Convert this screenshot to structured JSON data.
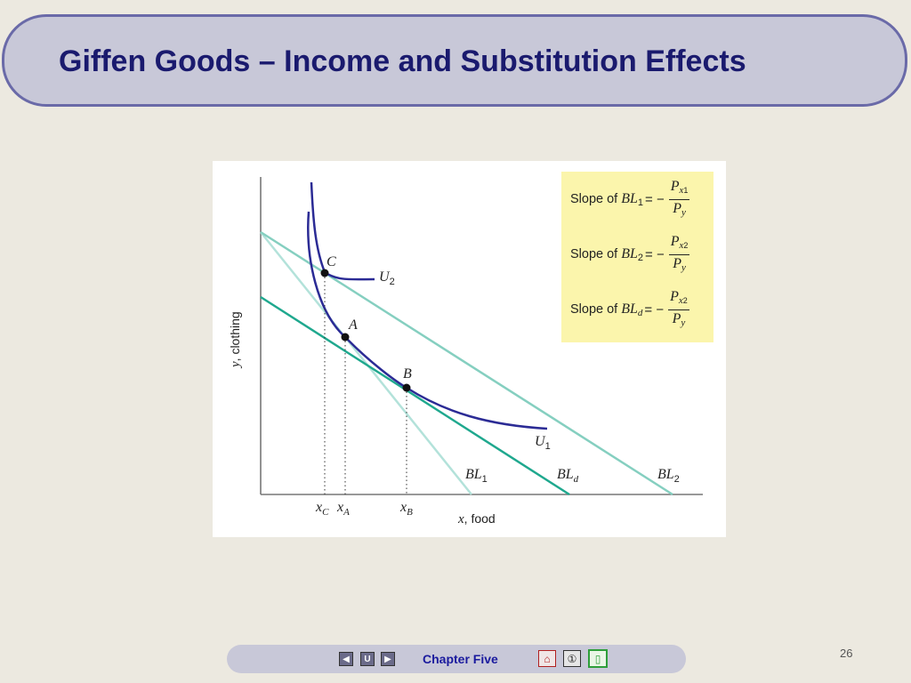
{
  "slide": {
    "title": "Giffen Goods – Income and Substitution Effects",
    "chapter": "Chapter Five",
    "page_number": "26"
  },
  "diagram": {
    "axes": {
      "x_label": "x, food",
      "y_label": "y, clothing"
    },
    "budget_lines": [
      "BL1",
      "BLd",
      "BL2"
    ],
    "curves": [
      "U1",
      "U2"
    ],
    "points": [
      "C",
      "A",
      "B"
    ],
    "x_ticks": [
      "xC",
      "xA",
      "xB"
    ],
    "legend": [
      {
        "label": "Slope of",
        "line": "BL",
        "line_sub": "1",
        "num": "P",
        "num_sub": "x",
        "num_subsub": "1",
        "den": "P",
        "den_sub": "y"
      },
      {
        "label": "Slope of",
        "line": "BL",
        "line_sub": "2",
        "num": "P",
        "num_sub": "x",
        "num_subsub": "2",
        "den": "P",
        "den_sub": "y"
      },
      {
        "label": "Slope of",
        "line": "BL",
        "line_sub": "d",
        "num": "P",
        "num_sub": "x",
        "num_subsub": "2",
        "den": "P",
        "den_sub": "y"
      }
    ],
    "colors": {
      "bl1": "#b0e0d8",
      "bld": "#1fa88e",
      "bl2": "#85cfc0",
      "curve": "#2b2b95",
      "legend_bg": "#fbf5ac"
    }
  },
  "footer_nav": [
    {
      "icon": "prev-arrow-icon"
    },
    {
      "icon": "return-icon"
    },
    {
      "icon": "next-arrow-icon"
    },
    {
      "icon": "home-icon"
    },
    {
      "icon": "info-icon"
    },
    {
      "icon": "exit-icon"
    }
  ]
}
